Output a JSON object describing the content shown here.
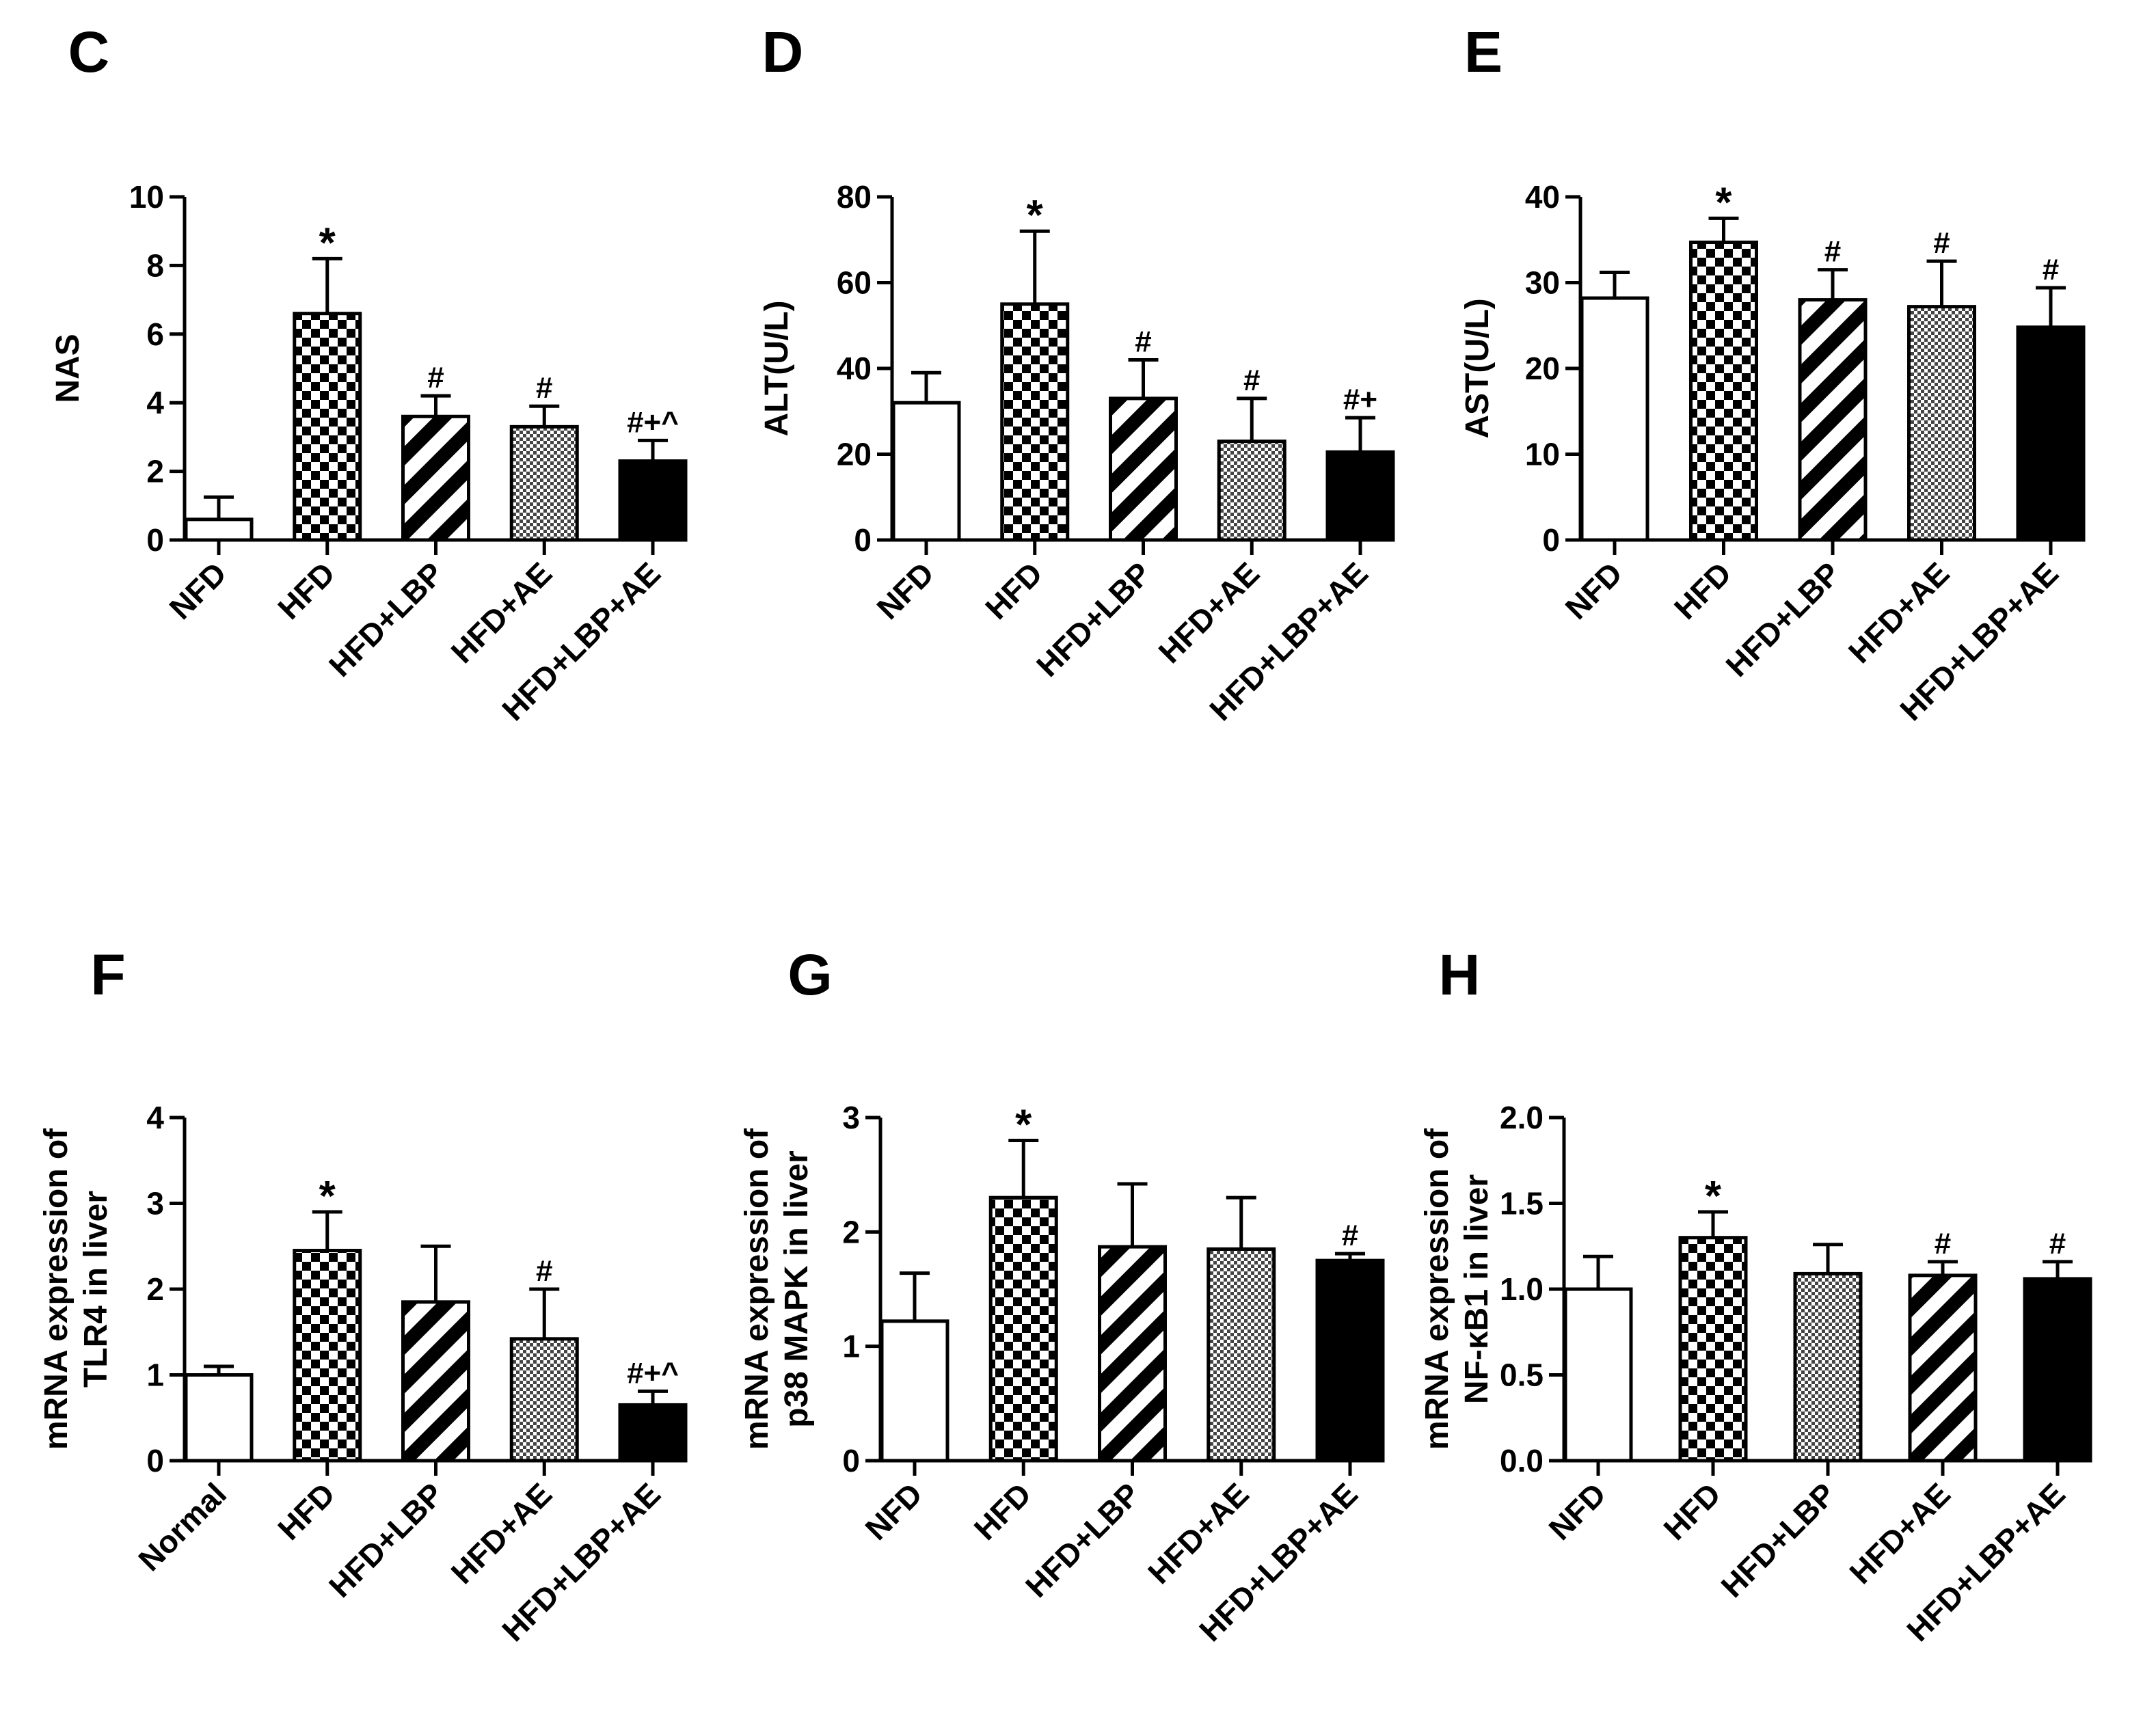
{
  "figure": {
    "colors": {
      "ink": "#000000",
      "background": "#ffffff"
    },
    "panels": [
      {
        "letter": "C",
        "chart_data": {
          "type": "bar",
          "title": "",
          "xlabel": "",
          "ylabel": [
            "NAS"
          ],
          "ylim": [
            0,
            10
          ],
          "yticks": [
            0,
            2,
            4,
            6,
            8,
            10
          ],
          "ytick_labels": [
            "0",
            "2",
            "4",
            "6",
            "8",
            "10"
          ],
          "categories": [
            "NFD",
            "HFD",
            "HFD+LBP",
            "HFD+AE",
            "HFD+LBP+AE"
          ],
          "values": [
            0.6,
            6.6,
            3.6,
            3.3,
            2.3
          ],
          "errors": [
            0.65,
            1.6,
            0.6,
            0.6,
            0.6
          ],
          "fills": [
            "white",
            "checker",
            "stripe",
            "dots",
            "black"
          ],
          "annotations": [
            "",
            "*",
            "#",
            "#",
            "#+^"
          ]
        }
      },
      {
        "letter": "D",
        "chart_data": {
          "type": "bar",
          "title": "",
          "xlabel": "",
          "ylabel": [
            "ALT(U/L)"
          ],
          "ylim": [
            0,
            80
          ],
          "yticks": [
            0,
            20,
            40,
            60,
            80
          ],
          "ytick_labels": [
            "0",
            "20",
            "40",
            "60",
            "80"
          ],
          "categories": [
            "NFD",
            "HFD",
            "HFD+LBP",
            "HFD+AE",
            "HFD+LBP+AE"
          ],
          "values": [
            32,
            55,
            33,
            23,
            20.5
          ],
          "errors": [
            7,
            17,
            9,
            10,
            8
          ],
          "fills": [
            "white",
            "checker",
            "stripe",
            "dots",
            "black"
          ],
          "annotations": [
            "",
            "*",
            "#",
            "#",
            "#+"
          ]
        }
      },
      {
        "letter": "E",
        "chart_data": {
          "type": "bar",
          "title": "",
          "xlabel": "",
          "ylabel": [
            "AST(U/L)"
          ],
          "ylim": [
            0,
            40
          ],
          "yticks": [
            0,
            10,
            20,
            30,
            40
          ],
          "ytick_labels": [
            "0",
            "10",
            "20",
            "30",
            "40"
          ],
          "categories": [
            "NFD",
            "HFD",
            "HFD+LBP",
            "HFD+AE",
            "HFD+LBP+AE"
          ],
          "values": [
            28.2,
            34.7,
            28,
            27.2,
            24.8
          ],
          "errors": [
            3,
            2.8,
            3.5,
            5.3,
            4.6
          ],
          "fills": [
            "white",
            "checker",
            "stripe",
            "dots",
            "black"
          ],
          "annotations": [
            "",
            "*",
            "#",
            "#",
            "#"
          ]
        }
      },
      {
        "letter": "F",
        "chart_data": {
          "type": "bar",
          "title": "",
          "xlabel": "",
          "ylabel": [
            "mRNA expression of",
            "TLR4 in liver"
          ],
          "ylim": [
            0,
            4
          ],
          "yticks": [
            0,
            1,
            2,
            3,
            4
          ],
          "ytick_labels": [
            "0",
            "1",
            "2",
            "3",
            "4"
          ],
          "categories": [
            "Normal",
            "HFD",
            "HFD+LBP",
            "HFD+AE",
            "HFD+LBP+AE"
          ],
          "values": [
            1.0,
            2.45,
            1.85,
            1.42,
            0.65
          ],
          "errors": [
            0.1,
            0.45,
            0.65,
            0.58,
            0.16
          ],
          "fills": [
            "white",
            "checker",
            "stripe",
            "dots",
            "black"
          ],
          "annotations": [
            "",
            "*",
            "",
            "#",
            "#+^"
          ]
        }
      },
      {
        "letter": "G",
        "chart_data": {
          "type": "bar",
          "title": "",
          "xlabel": "",
          "ylabel": [
            "mRNA expression of",
            "p38 MAPK in liver"
          ],
          "ylim": [
            0,
            3
          ],
          "yticks": [
            0,
            1,
            2,
            3
          ],
          "ytick_labels": [
            "0",
            "1",
            "2",
            "3"
          ],
          "categories": [
            "NFD",
            "HFD",
            "HFD+LBP",
            "HFD+AE",
            "HFD+LBP+AE"
          ],
          "values": [
            1.22,
            2.3,
            1.87,
            1.85,
            1.75
          ],
          "errors": [
            0.42,
            0.5,
            0.55,
            0.45,
            0.06
          ],
          "fills": [
            "white",
            "checker",
            "stripe",
            "dots",
            "black"
          ],
          "annotations": [
            "",
            "*",
            "",
            "",
            "#"
          ]
        }
      },
      {
        "letter": "H",
        "chart_data": {
          "type": "bar",
          "title": "",
          "xlabel": "",
          "ylabel": [
            "mRNA expression of",
            "NF-κB1 in liver"
          ],
          "ylim": [
            0,
            2
          ],
          "yticks": [
            0,
            0.5,
            1,
            1.5,
            2
          ],
          "ytick_labels": [
            "0.0",
            "0.5",
            "1.0",
            "1.5",
            "2.0"
          ],
          "categories": [
            "NFD",
            "HFD",
            "HFD+LBP",
            "HFD+AE",
            "HFD+LBP+AE"
          ],
          "values": [
            1.0,
            1.3,
            1.09,
            1.08,
            1.06
          ],
          "errors": [
            0.19,
            0.15,
            0.17,
            0.08,
            0.1
          ],
          "fills": [
            "white",
            "checker",
            "dots",
            "stripe",
            "black"
          ],
          "annotations": [
            "",
            "*",
            "",
            "#",
            "#"
          ]
        }
      }
    ]
  }
}
